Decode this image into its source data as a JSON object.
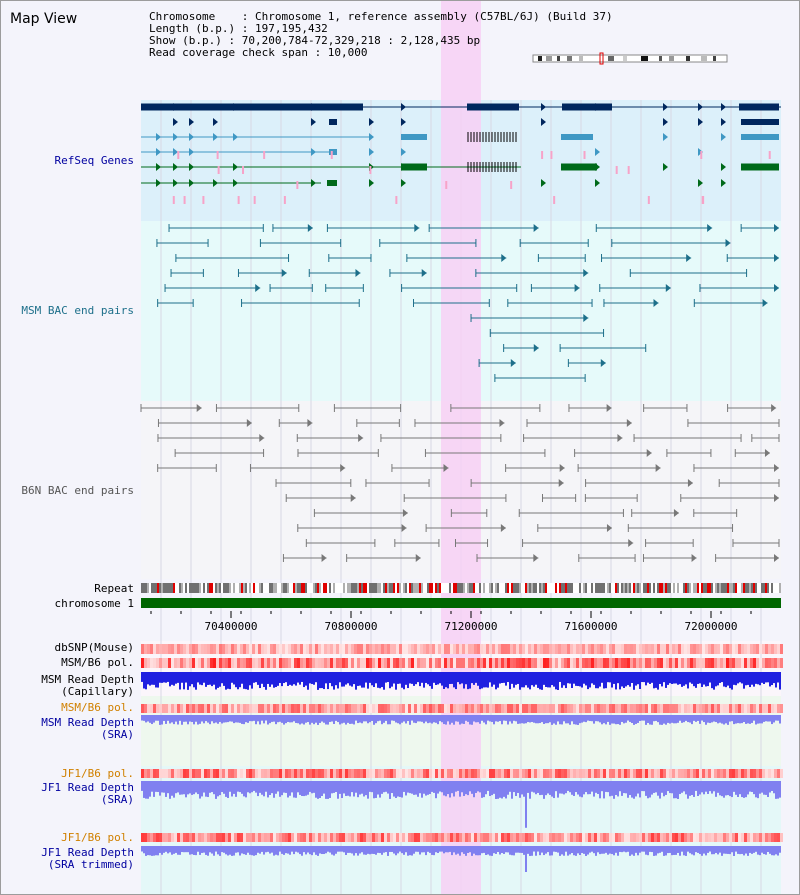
{
  "page": {
    "title": "Map View"
  },
  "info": {
    "chromosome": "Chromosome    : Chromosome 1, reference assembly (C57BL/6J) (Build 37)",
    "length": "Length (b.p.) : 197,195,432",
    "show": "Show (b.p.) : 70,200,784-72,329,218 : 2,128,435 bp",
    "span": "Read coverage check span : 10,000"
  },
  "tracks": {
    "refseq": "RefSeq Genes",
    "msm_bac": "MSM BAC end pairs",
    "b6n_bac": "B6N BAC end pairs",
    "repeat": "Repeat",
    "chromosome": "chromosome 1",
    "dbsnp": "dbSNP(Mouse)",
    "msm_b6_pol": "MSM/B6 pol.",
    "msm_depth_cap_1": "MSM Read Depth",
    "msm_depth_cap_2": "(Capillary)",
    "msm_b6_pol_sra": "MSM/B6 pol.",
    "msm_depth_sra_1": "MSM Read Depth",
    "msm_depth_sra_2": "(SRA)",
    "jf1_b6_pol": "JF1/B6 pol.",
    "jf1_depth_sra_1": "JF1 Read Depth",
    "jf1_depth_sra_2": "(SRA)",
    "jf1_b6_pol_trim": "JF1/B6 pol.",
    "jf1_depth_trim_1": "JF1 Read Depth",
    "jf1_depth_trim_2": "(SRA trimmed)"
  },
  "axis": {
    "ticks": [
      "70400000",
      "70800000",
      "71200000",
      "71600000",
      "72000000"
    ]
  },
  "colors": {
    "refseq_bg": "#dcf0fa",
    "msm_bac_bg": "#e6fafa",
    "b6n_bac_bg": "#f5f5f8",
    "highlight": "#f7d0f5",
    "gene_dark": "#00275e",
    "gene_green": "#006a1a",
    "gene_blue": "#3f98c4",
    "bac_teal": "#1d6f8a",
    "bac_gray": "#787878",
    "chromosome": "#006600",
    "label_navy": "#0000a0",
    "label_teal": "#1d6f8a",
    "label_orange": "#d08000",
    "depth_blue": "#2020e0",
    "depth_light": "#8080f0"
  }
}
